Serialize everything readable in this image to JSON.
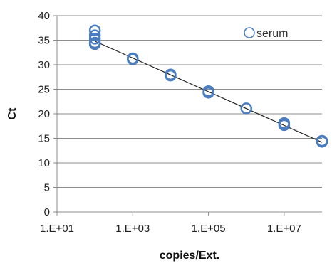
{
  "chart_data": {
    "type": "scatter",
    "title": "",
    "xlabel": "copies/Ext.",
    "ylabel": "Ct",
    "x_scale": "log10",
    "xlim": [
      10,
      100000000
    ],
    "ylim": [
      0,
      40
    ],
    "x_ticks": [
      10,
      1000,
      100000,
      10000000
    ],
    "x_tick_labels": [
      "1.E+01",
      "1.E+03",
      "1.E+05",
      "1.E+07"
    ],
    "y_ticks": [
      0,
      5,
      10,
      15,
      20,
      25,
      30,
      35,
      40
    ],
    "y_tick_labels": [
      "0",
      "5",
      "10",
      "15",
      "20",
      "25",
      "30",
      "35",
      "40"
    ],
    "grid": true,
    "legend_position": "top-right",
    "series": [
      {
        "name": "serum",
        "marker": "open-circle",
        "color": "#4a7cc0",
        "points": [
          {
            "x": 100,
            "y": 37.0
          },
          {
            "x": 100,
            "y": 36.0
          },
          {
            "x": 100,
            "y": 35.3
          },
          {
            "x": 100,
            "y": 34.5
          },
          {
            "x": 100,
            "y": 34.2
          },
          {
            "x": 1000,
            "y": 31.1
          },
          {
            "x": 1000,
            "y": 31.3
          },
          {
            "x": 10000,
            "y": 27.8
          },
          {
            "x": 10000,
            "y": 28.0
          },
          {
            "x": 100000,
            "y": 24.3
          },
          {
            "x": 100000,
            "y": 24.6
          },
          {
            "x": 1000000,
            "y": 21.1
          },
          {
            "x": 10000000,
            "y": 17.7
          },
          {
            "x": 10000000,
            "y": 18.1
          },
          {
            "x": 100000000,
            "y": 14.3
          },
          {
            "x": 100000000,
            "y": 14.5
          }
        ]
      }
    ],
    "trendline": {
      "type": "linear-in-log-x",
      "color": "#222222",
      "x_start": 100,
      "y_start": 34.8,
      "x_end": 100000000,
      "y_end": 14.2
    }
  }
}
